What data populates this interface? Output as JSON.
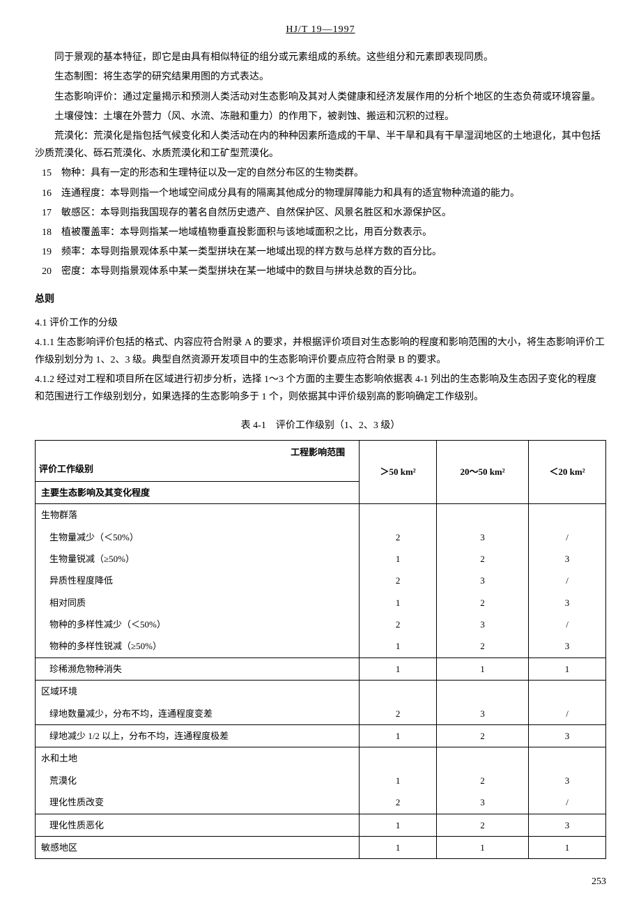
{
  "header": {
    "code": "HJ/T 19—1997"
  },
  "intro": {
    "p1": "同于景观的基本特征，即它是由具有相似特征的组分或元素组成的系统。这些组分和元素即表现同质。",
    "p2": "生态制图：将生态学的研究结果用图的方式表达。",
    "p3": "生态影响评价：通过定量揭示和预测人类活动对生态影响及其对人类健康和经济发展作用的分析个地区的生态负荷或环境容量。",
    "p4": "土壤侵蚀：土壤在外营力（风、水流、冻融和重力）的作用下，被剥蚀、搬运和沉积的过程。",
    "p5": "荒漠化：荒漠化是指包括气候变化和人类活动在内的种种因素所造成的干旱、半干旱和具有干旱湿润地区的土地退化，其中包括沙质荒漠化、砾石荒漠化、水质荒漠化和工矿型荒漠化。"
  },
  "definitions": [
    {
      "num": "15",
      "text": "物种：具有一定的形态和生理特征以及一定的自然分布区的生物类群。"
    },
    {
      "num": "16",
      "text": "连通程度：本导则指一个地域空间成分具有的隔离其他成分的物理屏障能力和具有的适宜物种流道的能力。"
    },
    {
      "num": "17",
      "text": "敏感区：本导则指我国现存的著名自然历史遗产、自然保护区、风景名胜区和水源保护区。"
    },
    {
      "num": "18",
      "text": "植被覆盖率：本导则指某一地域植物垂直投影面积与该地域面积之比，用百分数表示。"
    },
    {
      "num": "19",
      "text": "频率：本导则指景观体系中某一类型拼块在某一地域出现的样方数与总样方数的百分比。"
    },
    {
      "num": "20",
      "text": "密度：本导则指景观体系中某一类型拼块在某一地域中的数目与拼块总数的百分比。"
    }
  ],
  "section4": {
    "title": "总则",
    "s41": {
      "num": "4.1",
      "title": "评价工作的分级"
    },
    "s411": {
      "num": "4.1.1",
      "text": "生态影响评价包括的格式、内容应符合附录 A 的要求，并根据评价项目对生态影响的程度和影响范围的大小，将生态影响评价工作级别划分为 1、2、3 级。典型自然资源开发项目中的生态影响评价要点应符合附录 B 的要求。"
    },
    "s412": {
      "num": "4.1.2",
      "text": "经过对工程和项目所在区域进行初步分析，选择 1～3 个方面的主要生态影响依据表 4-1 列出的生态影响及生态因子变化的程度和范围进行工作级别划分，如果选择的生态影响多于 1 个，则依据其中评价级别高的影响确定工作级别。"
    }
  },
  "table": {
    "caption": "表 4-1　评价工作级别（1、2、3 级）",
    "diag_top": "工程影响范围",
    "diag_bottom": "评价工作级别",
    "col1": "＞50 km²",
    "col2": "20～50 km²",
    "col3": "＜20 km²",
    "row_subtitle": "主要生态影响及其变化程度",
    "groups": [
      {
        "name": "生物群落",
        "rows": [
          {
            "label": "生物量减少（＜50%）",
            "v1": "2",
            "v2": "3",
            "v3": "/"
          },
          {
            "label": "生物量锐减（≥50%）",
            "v1": "1",
            "v2": "2",
            "v3": "3"
          },
          {
            "label": "异质性程度降低",
            "v1": "2",
            "v2": "3",
            "v3": "/"
          },
          {
            "label": "相对同质",
            "v1": "1",
            "v2": "2",
            "v3": "3"
          },
          {
            "label": "物种的多样性减少（＜50%）",
            "v1": "2",
            "v2": "3",
            "v3": "/"
          },
          {
            "label": "物种的多样性锐减（≥50%）",
            "v1": "1",
            "v2": "2",
            "v3": "3"
          },
          {
            "label": "珍稀濒危物种消失",
            "v1": "1",
            "v2": "1",
            "v3": "1"
          }
        ]
      },
      {
        "name": "区域环境",
        "rows": [
          {
            "label": "绿地数量减少，分布不均，连通程度变差",
            "v1": "2",
            "v2": "3",
            "v3": "/"
          },
          {
            "label": "绿地减少 1/2 以上，分布不均，连通程度极差",
            "v1": "1",
            "v2": "2",
            "v3": "3"
          }
        ]
      },
      {
        "name": "水和土地",
        "rows": [
          {
            "label": "荒漠化",
            "v1": "1",
            "v2": "2",
            "v3": "3"
          },
          {
            "label": "理化性质改变",
            "v1": "2",
            "v2": "3",
            "v3": "/"
          },
          {
            "label": "理化性质恶化",
            "v1": "1",
            "v2": "2",
            "v3": "3"
          }
        ]
      },
      {
        "name": "敏感地区",
        "single": true,
        "rows": [
          {
            "label": "",
            "v1": "1",
            "v2": "1",
            "v3": "1"
          }
        ]
      }
    ]
  },
  "pageNum": "253"
}
